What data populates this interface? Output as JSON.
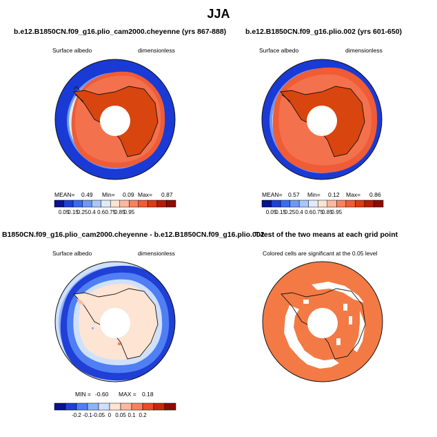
{
  "figure": {
    "title": "JJA"
  },
  "colors": {
    "albedo_scale": [
      "#08138c",
      "#1f3fd6",
      "#3a6cf0",
      "#6f98f5",
      "#a9c6f9",
      "#deebfd",
      "#fde4d3",
      "#fbb8a0",
      "#f6835f",
      "#ef5c35",
      "#dc3b13",
      "#b51d07",
      "#8c0c02"
    ],
    "diff_scale": [
      "#08138c",
      "#1f3fd6",
      "#4f7ff2",
      "#8fb3f7",
      "#cfe0fb",
      "#fde4d3",
      "#fbb8a0",
      "#f6835f",
      "#e84c22",
      "#c42a09",
      "#8c0c02"
    ],
    "ocean_ring": "#1a3ad6",
    "sea_ice_inner": "#ea5a2e",
    "continent": "#d8450f",
    "pole_hole": "#ffffff",
    "ttest": "#f37a45"
  },
  "panels": {
    "top_left": {
      "title": "b.e12.B1850CN.f09_g16.plio_cam2000.cheyenne (yrs 867-888)",
      "variable": "Surface albedo",
      "units": "dimensionless",
      "stats": {
        "mean_label": "MEAN=",
        "mean": "0.49",
        "min_label": "Min=",
        "min": "0.09",
        "max_label": "Max=",
        "max": "0.87"
      },
      "colorbar_labels": [
        "0.05",
        "0.15",
        "0.25",
        "0.4",
        "0.6",
        "0.75",
        "0.85",
        "0.95"
      ]
    },
    "top_right": {
      "title": "b.e12.B1850CN.f09_g16.plio.002 (yrs 601-650)",
      "variable": "Surface albedo",
      "units": "dimensionless",
      "stats": {
        "mean_label": "MEAN=",
        "mean": "0.57",
        "min_label": "Min=",
        "min": "0.12",
        "max_label": "Max=",
        "max": "0.86"
      },
      "colorbar_labels": [
        "0.05",
        "0.15",
        "0.25",
        "0.4",
        "0.6",
        "0.75",
        "0.85",
        "0.95"
      ]
    },
    "bottom_left": {
      "title": "B1850CN.f09_g16.plio_cam2000.cheyenne - b.e12.B1850CN.f09_g16.plio.002",
      "variable": "Surface albedo",
      "units": "dimensionless",
      "stats": {
        "min_label": "MIN =",
        "min": "-0.60",
        "max_label": "MAX =",
        "max": "0.18"
      },
      "colorbar_labels": [
        "-0.2",
        "-0.1",
        "-0.05",
        "0",
        "0.05",
        "0.1",
        "0.2"
      ]
    },
    "bottom_right": {
      "title": "T-test of the two means at each grid point",
      "note": "Colored cells are significant at the 0.05 level"
    }
  }
}
